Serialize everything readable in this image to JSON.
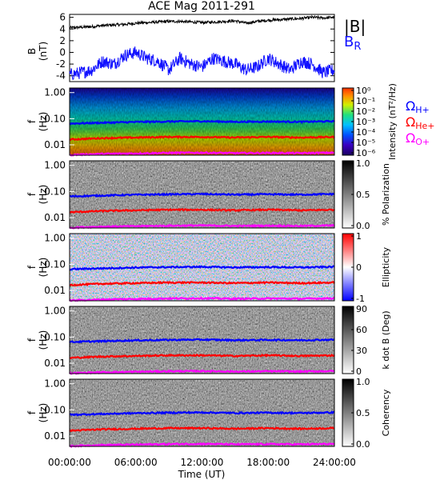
{
  "title": "ACE Mag 2011-291",
  "x_axis": {
    "label": "Time (UT)",
    "ticks": [
      "00:00:00",
      "06:00:00",
      "12:00:00",
      "18:00:00",
      "24:00:00"
    ],
    "range_hours": [
      0,
      24
    ]
  },
  "colors": {
    "btotal": "#000000",
    "br": "#1010ff",
    "hplus": "#0000ff",
    "heplus": "#ff0000",
    "oplus": "#ff00ff"
  },
  "legend": {
    "btotal": "|B|",
    "br_main": "B",
    "br_sub": "R",
    "hplus_main": "Ω",
    "hplus_sub": "H+",
    "heplus_main": "Ω",
    "heplus_sub": "He+",
    "oplus_main": "Ω",
    "oplus_sub": "O+"
  },
  "panels": [
    {
      "id": "bfield",
      "ylabel": [
        "B",
        "(nT)"
      ],
      "yticks": [
        "6",
        "4",
        "2",
        "0",
        "-2",
        "-4"
      ]
    },
    {
      "id": "intensity",
      "ylabel": [
        "f",
        "(Hz)"
      ],
      "yticks": [
        "1.00",
        "0.10",
        "0.01"
      ],
      "cbar_label": "Intensity (nT²/Hz)",
      "cbar_ticks": [
        "10⁰",
        "10⁻¹",
        "10⁻²",
        "10⁻³",
        "10⁻⁴",
        "10⁻⁵",
        "10⁻⁶"
      ]
    },
    {
      "id": "polarization",
      "ylabel": [
        "f",
        "(Hz)"
      ],
      "yticks": [
        "1.00",
        "0.10",
        "0.01"
      ],
      "cbar_label": "% Polarization",
      "cbar_ticks": [
        "1.0",
        "0.5",
        "0.0"
      ]
    },
    {
      "id": "ellipticity",
      "ylabel": [
        "f",
        "(Hz)"
      ],
      "yticks": [
        "1.00",
        "0.10",
        "0.01"
      ],
      "cbar_label": "Ellipticity",
      "cbar_ticks": [
        "1",
        "0",
        "-1"
      ]
    },
    {
      "id": "kdotb",
      "ylabel": [
        "f",
        "(Hz)"
      ],
      "yticks": [
        "1.00",
        "0.10",
        "0.01"
      ],
      "cbar_label": "k dot B (Deg)",
      "cbar_ticks": [
        "90",
        "60",
        "30",
        "0"
      ]
    },
    {
      "id": "coherency",
      "ylabel": [
        "f",
        "(Hz)"
      ],
      "yticks": [
        "1.00",
        "0.10",
        "0.01"
      ],
      "cbar_label": "Coherency",
      "cbar_ticks": [
        "1.0",
        "0.5",
        "0.0"
      ]
    }
  ],
  "chart_data": [
    {
      "type": "line",
      "x_unit": "hours UT",
      "ylabel": "B (nT)",
      "ylim": [
        -5,
        6.5
      ],
      "series": [
        {
          "name": "|B|",
          "x": [
            0,
            1,
            2,
            3,
            4,
            5,
            6,
            7,
            8,
            9,
            10,
            11,
            12,
            13,
            14,
            15,
            16,
            17,
            18,
            19,
            20,
            21,
            22,
            23,
            24
          ],
          "values": [
            4.2,
            4.3,
            4.4,
            4.6,
            4.7,
            4.8,
            5.0,
            5.1,
            5.2,
            5.3,
            5.3,
            5.2,
            5.1,
            5.2,
            5.3,
            5.4,
            5.0,
            5.3,
            5.5,
            5.6,
            5.7,
            5.8,
            6.0,
            5.9,
            6.0
          ]
        },
        {
          "name": "B_R",
          "x": [
            0,
            1,
            2,
            3,
            4,
            5,
            6,
            7,
            8,
            9,
            10,
            11,
            12,
            13,
            14,
            15,
            16,
            17,
            18,
            19,
            20,
            21,
            22,
            23,
            24
          ],
          "values": [
            -3.8,
            -3.5,
            -3.0,
            -1.5,
            -2.0,
            -0.5,
            0.0,
            -1.0,
            -1.5,
            -3.0,
            -1.0,
            -2.0,
            -2.5,
            -1.0,
            -1.5,
            -2.0,
            -3.0,
            -2.5,
            -1.0,
            -2.0,
            -3.0,
            -1.5,
            -2.0,
            -3.5,
            -3.0
          ]
        }
      ]
    },
    {
      "type": "line",
      "x_unit": "hours UT",
      "ylabel": "f (Hz)",
      "y_scale": "log",
      "ylim": [
        0.004,
        1.5
      ],
      "series": [
        {
          "name": "ΩH+",
          "x": [
            0,
            3,
            6,
            9,
            12,
            15,
            18,
            21,
            24
          ],
          "values": [
            0.065,
            0.07,
            0.075,
            0.078,
            0.08,
            0.076,
            0.078,
            0.076,
            0.08
          ]
        },
        {
          "name": "ΩHe+",
          "x": [
            0,
            3,
            6,
            9,
            12,
            15,
            18,
            21,
            24
          ],
          "values": [
            0.016,
            0.018,
            0.019,
            0.02,
            0.02,
            0.019,
            0.02,
            0.019,
            0.02
          ]
        },
        {
          "name": "ΩO+",
          "x": [
            0,
            3,
            6,
            9,
            12,
            15,
            18,
            21,
            24
          ],
          "values": [
            0.0041,
            0.0045,
            0.0047,
            0.0049,
            0.005,
            0.0048,
            0.0049,
            0.0048,
            0.005
          ]
        }
      ]
    }
  ]
}
